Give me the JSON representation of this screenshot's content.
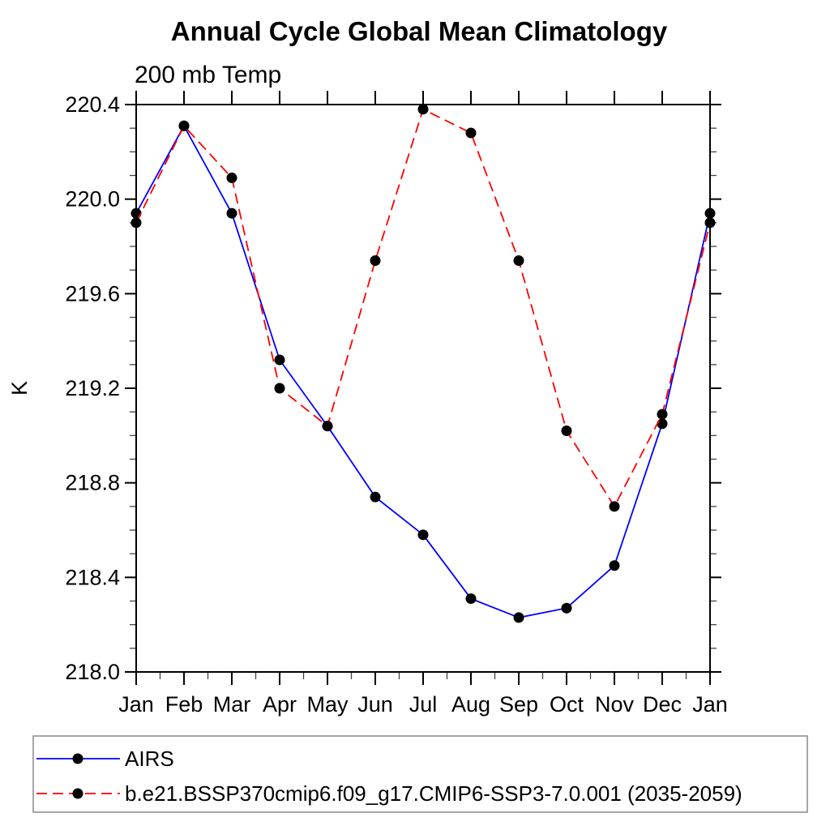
{
  "title": "Annual Cycle Global Mean Climatology",
  "subtitle": "200 mb Temp",
  "colors": {
    "obs_line": "#0000ff",
    "model_line": "#ff0000",
    "marker": "#000000",
    "axis": "#000000",
    "minor_tick": "#444444",
    "legend_border": "#808080"
  },
  "chart_data": {
    "type": "line",
    "title": "Annual Cycle Global Mean Climatology",
    "subtitle": "200 mb Temp",
    "xlabel": "",
    "ylabel": "K",
    "categories": [
      "Jan",
      "Feb",
      "Mar",
      "Apr",
      "May",
      "Jun",
      "Jul",
      "Aug",
      "Sep",
      "Oct",
      "Nov",
      "Dec",
      "Jan"
    ],
    "ylim": [
      218.0,
      220.4
    ],
    "ytick_step": 0.4,
    "ytick_minor_step": 0.1,
    "ytick_labels": [
      "218.0",
      "218.4",
      "218.8",
      "219.2",
      "219.6",
      "220.0",
      "220.4"
    ],
    "grid": false,
    "legend_position": "bottom",
    "series": [
      {
        "name": "AIRS",
        "color": "#0000ff",
        "dash": "solid",
        "marker": "circle",
        "marker_color": "#000000",
        "values": [
          219.94,
          220.31,
          219.94,
          219.32,
          219.04,
          218.74,
          218.58,
          218.31,
          218.23,
          218.27,
          218.45,
          219.05,
          219.94
        ]
      },
      {
        "name": "b.e21.BSSP370cmip6.f09_g17.CMIP6-SSP3-7.0.001 (2035-2059)",
        "color": "#ff0000",
        "dash": "dashed",
        "marker": "circle",
        "marker_color": "#000000",
        "values": [
          219.9,
          220.31,
          220.09,
          219.2,
          219.04,
          219.74,
          220.38,
          220.28,
          219.74,
          219.02,
          218.7,
          219.09,
          219.9
        ]
      }
    ]
  }
}
